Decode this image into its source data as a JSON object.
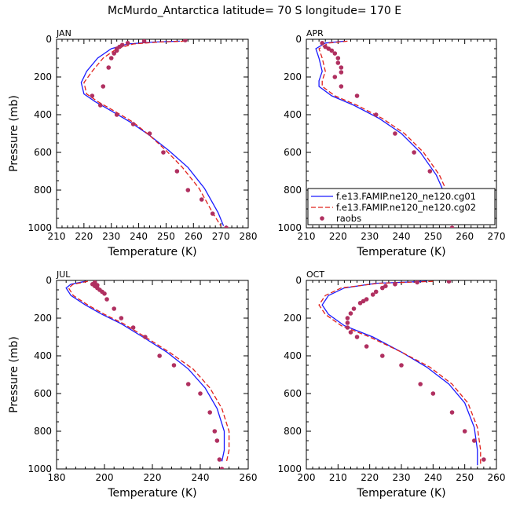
{
  "title": "McMurdo_Antarctica  latitude= 70 S longitude= 170 E",
  "colors": {
    "cg01": "#1a1aff",
    "cg02": "#e0201a",
    "raobs": "#b03060",
    "axis": "#000000"
  },
  "chart_data": [
    {
      "type": "line",
      "panel": "JAN",
      "xlabel": "Temperature (K)",
      "ylabel": "Pressure (mb)",
      "xlim": [
        210,
        280
      ],
      "ylim": [
        0,
        1000
      ],
      "xticks": [
        210,
        220,
        230,
        240,
        250,
        260,
        270,
        280
      ],
      "yticks": [
        0,
        200,
        400,
        600,
        800,
        1000
      ],
      "series": [
        {
          "name": "f.e13.FAMIP.ne120_ne120.cg01",
          "style": "solid",
          "x": [
            255,
            245,
            236,
            230,
            225,
            221,
            219,
            220,
            224,
            230,
            237,
            244,
            251,
            258,
            264,
            269,
            271
          ],
          "y": [
            10,
            15,
            25,
            50,
            100,
            170,
            230,
            290,
            330,
            380,
            440,
            510,
            590,
            680,
            790,
            920,
            990
          ]
        },
        {
          "name": "f.e13.FAMIP.ne120_ne120.cg02",
          "style": "dashed",
          "x": [
            257,
            247,
            238,
            232,
            227,
            223,
            220,
            221,
            225,
            231,
            238,
            244,
            250,
            256,
            262,
            267,
            270
          ],
          "y": [
            10,
            15,
            25,
            50,
            100,
            170,
            230,
            290,
            330,
            380,
            440,
            510,
            590,
            680,
            790,
            920,
            990
          ]
        },
        {
          "name": "raobs",
          "style": "points",
          "x": [
            257,
            242,
            236,
            234,
            233,
            232,
            232,
            231,
            230,
            229,
            227,
            223,
            226,
            232,
            238,
            244,
            249,
            254,
            258,
            263,
            267,
            272
          ],
          "y": [
            5,
            10,
            20,
            30,
            40,
            50,
            60,
            75,
            100,
            150,
            250,
            300,
            350,
            400,
            450,
            500,
            600,
            700,
            800,
            850,
            925,
            1000
          ]
        }
      ]
    },
    {
      "type": "line",
      "panel": "APR",
      "xlabel": "Temperature (K)",
      "ylabel": "",
      "xlim": [
        210,
        270
      ],
      "ylim": [
        0,
        1000
      ],
      "xticks": [
        210,
        220,
        230,
        240,
        250,
        260,
        270
      ],
      "yticks": [
        0,
        200,
        400,
        600,
        800,
        1000
      ],
      "series": [
        {
          "name": "f.e13.FAMIP.ne120_ne120.cg01",
          "style": "solid",
          "x": [
            222,
            216,
            213,
            214,
            215,
            214,
            214,
            218,
            225,
            233,
            240,
            246,
            251,
            255,
            257
          ],
          "y": [
            10,
            20,
            50,
            100,
            170,
            220,
            250,
            300,
            350,
            420,
            500,
            600,
            720,
            870,
            980
          ]
        },
        {
          "name": "f.e13.FAMIP.ne120_ne120.cg02",
          "style": "dashed",
          "x": [
            223,
            217,
            214,
            215,
            216,
            215,
            215,
            219,
            226,
            234,
            241,
            247,
            252,
            256,
            258
          ],
          "y": [
            10,
            20,
            50,
            100,
            170,
            220,
            250,
            300,
            350,
            420,
            500,
            600,
            720,
            870,
            980
          ]
        },
        {
          "name": "raobs",
          "style": "points",
          "x": [
            215,
            216,
            217,
            218,
            219,
            220,
            220,
            221,
            221,
            219,
            221,
            226,
            232,
            238,
            244,
            249,
            253,
            256
          ],
          "y": [
            20,
            40,
            50,
            60,
            75,
            100,
            125,
            150,
            175,
            200,
            250,
            300,
            400,
            500,
            600,
            700,
            850,
            1000
          ]
        }
      ]
    },
    {
      "type": "line",
      "panel": "JUL",
      "xlabel": "Temperature (K)",
      "ylabel": "Pressure (mb)",
      "xlim": [
        180,
        260
      ],
      "ylim": [
        0,
        1000
      ],
      "xticks": [
        180,
        200,
        220,
        240,
        260
      ],
      "yticks": [
        0,
        200,
        400,
        600,
        800,
        1000
      ],
      "series": [
        {
          "name": "f.e13.FAMIP.ne120_ne120.cg01",
          "style": "solid",
          "x": [
            192,
            186,
            184,
            186,
            192,
            199,
            207,
            216,
            226,
            235,
            242,
            247,
            250,
            250,
            249
          ],
          "y": [
            5,
            20,
            40,
            80,
            130,
            180,
            230,
            300,
            380,
            470,
            570,
            680,
            800,
            900,
            960
          ]
        },
        {
          "name": "f.e13.FAMIP.ne120_ne120.cg02",
          "style": "dashed",
          "x": [
            193,
            187,
            185,
            187,
            193,
            200,
            208,
            217,
            227,
            237,
            244,
            249,
            252,
            252,
            251
          ],
          "y": [
            5,
            20,
            40,
            80,
            130,
            180,
            230,
            300,
            380,
            470,
            570,
            680,
            800,
            900,
            960
          ]
        },
        {
          "name": "raobs",
          "style": "points",
          "x": [
            196,
            195,
            197,
            196,
            197,
            198,
            199,
            200,
            201,
            204,
            207,
            212,
            217,
            223,
            229,
            235,
            240,
            244,
            246,
            247,
            248,
            249
          ],
          "y": [
            10,
            20,
            25,
            30,
            40,
            50,
            60,
            70,
            100,
            150,
            200,
            250,
            300,
            400,
            450,
            550,
            600,
            700,
            800,
            850,
            950,
            1000
          ]
        }
      ]
    },
    {
      "type": "line",
      "panel": "OCT",
      "xlabel": "Temperature (K)",
      "ylabel": "",
      "xlim": [
        200,
        260
      ],
      "ylim": [
        0,
        1000
      ],
      "xticks": [
        200,
        210,
        220,
        230,
        240,
        250,
        260
      ],
      "yticks": [
        0,
        200,
        400,
        600,
        800,
        1000
      ],
      "series": [
        {
          "name": "f.e13.FAMIP.ne120_ne120.cg01",
          "style": "solid",
          "x": [
            238,
            222,
            212,
            207,
            205,
            207,
            212,
            221,
            230,
            238,
            245,
            250,
            253,
            254,
            254
          ],
          "y": [
            5,
            15,
            40,
            80,
            130,
            180,
            240,
            300,
            380,
            460,
            550,
            650,
            780,
            900,
            980
          ]
        },
        {
          "name": "f.e13.FAMIP.ne120_ne120.cg02",
          "style": "dashed",
          "x": [
            240,
            223,
            211,
            206,
            204,
            206,
            211,
            220,
            230,
            239,
            246,
            251,
            254,
            255,
            255
          ],
          "y": [
            5,
            15,
            40,
            80,
            130,
            180,
            240,
            300,
            380,
            460,
            550,
            650,
            780,
            900,
            980
          ]
        },
        {
          "name": "raobs",
          "style": "points",
          "x": [
            245,
            235,
            228,
            225,
            224,
            222,
            221,
            219,
            218,
            217,
            215,
            214,
            213,
            213,
            213,
            214,
            216,
            219,
            224,
            230,
            236,
            240,
            246,
            250,
            253,
            256
          ],
          "y": [
            5,
            10,
            20,
            30,
            40,
            60,
            75,
            100,
            110,
            120,
            150,
            175,
            200,
            225,
            250,
            275,
            300,
            350,
            400,
            450,
            550,
            600,
            700,
            800,
            850,
            950
          ]
        }
      ]
    }
  ],
  "legend": {
    "panel": "APR",
    "items": [
      {
        "label": "f.e13.FAMIP.ne120_ne120.cg01",
        "style": "solid"
      },
      {
        "label": "f.e13.FAMIP.ne120_ne120.cg02",
        "style": "dashed"
      },
      {
        "label": "raobs",
        "style": "points"
      }
    ]
  }
}
